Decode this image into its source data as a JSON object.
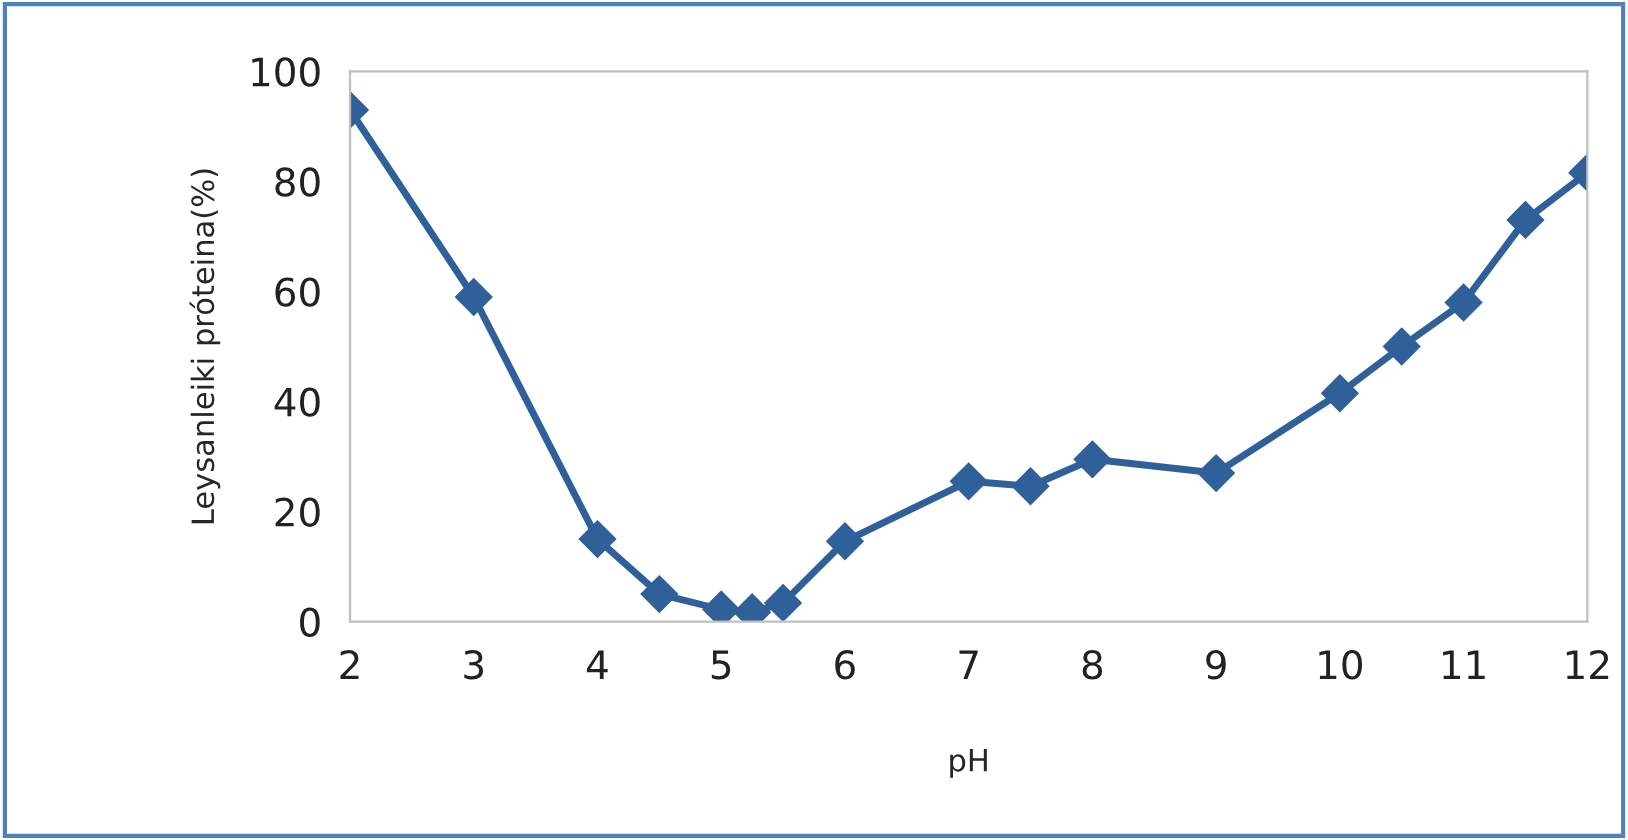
{
  "chart_data": {
    "type": "line",
    "xlabel": "pH",
    "ylabel": "Leysanleiki próteina(%)",
    "x": [
      2,
      3,
      4,
      4.5,
      5,
      5.25,
      5.5,
      6,
      7,
      7.5,
      8,
      9,
      10,
      10.5,
      11,
      11.5,
      12
    ],
    "series": [
      {
        "color": "#2f6099",
        "values": [
          93,
          59,
          15,
          5,
          2.2,
          1.7,
          3.4,
          14.6,
          25.5,
          24.6,
          29.5,
          27,
          41.5,
          50,
          58,
          73,
          81.6
        ]
      }
    ],
    "xlim": [
      2,
      12
    ],
    "xticks": [
      2,
      3,
      4,
      5,
      6,
      7,
      8,
      9,
      10,
      11,
      12
    ],
    "ylim": [
      0,
      100
    ],
    "yticks": [
      0,
      20,
      40,
      60,
      80,
      100
    ],
    "grid": false,
    "legend": false,
    "marker": "diamond",
    "line_style": "solid"
  }
}
